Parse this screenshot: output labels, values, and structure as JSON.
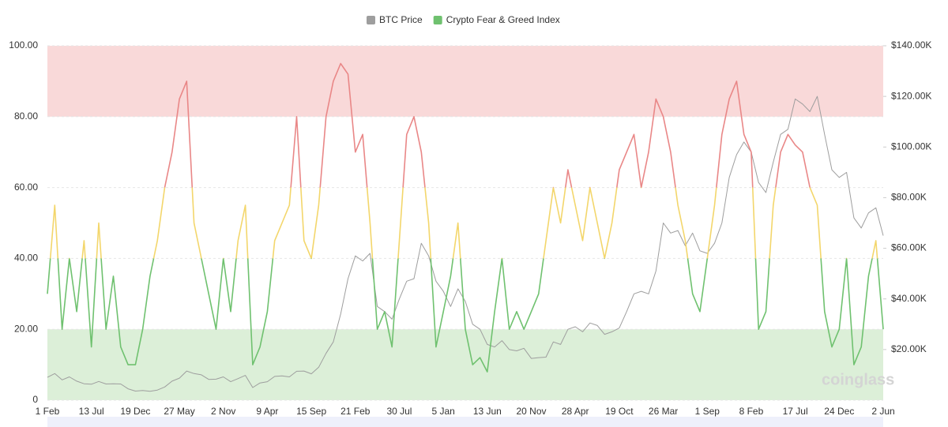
{
  "chart_data": {
    "type": "line",
    "watermark": "coinglass",
    "categories": [
      "1 Feb",
      null,
      null,
      null,
      null,
      null,
      "13 Jul",
      null,
      null,
      null,
      null,
      null,
      "19 Dec",
      null,
      null,
      null,
      null,
      null,
      "27 May",
      null,
      null,
      null,
      null,
      null,
      "2 Nov",
      null,
      null,
      null,
      null,
      null,
      "9 Apr",
      null,
      null,
      null,
      null,
      null,
      "15 Sep",
      null,
      null,
      null,
      null,
      null,
      "21 Feb",
      null,
      null,
      null,
      null,
      null,
      "30 Jul",
      null,
      null,
      null,
      null,
      null,
      "5 Jan",
      null,
      null,
      null,
      null,
      null,
      "13 Jun",
      null,
      null,
      null,
      null,
      null,
      "20 Nov",
      null,
      null,
      null,
      null,
      null,
      "28 Apr",
      null,
      null,
      null,
      null,
      null,
      "19 Oct",
      null,
      null,
      null,
      null,
      null,
      "26 Mar",
      null,
      null,
      null,
      null,
      null,
      "1 Sep",
      null,
      null,
      null,
      null,
      null,
      "8 Feb",
      null,
      null,
      null,
      null,
      null,
      "17 Jul",
      null,
      null,
      null,
      null,
      null,
      "24 Dec",
      null,
      null,
      null,
      null,
      null,
      "2 Jun"
    ],
    "series": [
      {
        "name": "BTC Price",
        "color": "#9e9e9e",
        "axis": "y2",
        "values": [
          9000,
          10500,
          8000,
          9200,
          7500,
          6500,
          6300,
          7400,
          6400,
          6500,
          6400,
          4500,
          3600,
          3800,
          3500,
          4000,
          5200,
          7500,
          8700,
          11500,
          10500,
          10000,
          8200,
          8300,
          9200,
          7300,
          8500,
          9800,
          5000,
          6800,
          7300,
          9400,
          9600,
          9200,
          11400,
          11500,
          10400,
          13000,
          18500,
          23000,
          34000,
          48000,
          57000,
          55000,
          58000,
          37000,
          35000,
          32000,
          40000,
          47000,
          48000,
          62000,
          57000,
          47000,
          43000,
          37000,
          44000,
          39000,
          30000,
          28000,
          22000,
          21000,
          23500,
          20000,
          19500,
          20500,
          16500,
          16800,
          17000,
          23000,
          22000,
          28000,
          29000,
          27000,
          30500,
          29500,
          26000,
          27000,
          28500,
          35000,
          42000,
          43000,
          42000,
          51000,
          70000,
          66000,
          67000,
          61000,
          66000,
          59000,
          58000,
          62000,
          70000,
          88000,
          97000,
          102000,
          98000,
          86000,
          82000,
          94000,
          105000,
          107000,
          119000,
          117000,
          114000,
          120000,
          105000,
          91000,
          88000,
          90000,
          72000,
          68000,
          74000,
          76000,
          65000
        ]
      },
      {
        "name": "Crypto Fear & Greed Index",
        "color": "#6fc16f",
        "values": [
          30,
          55,
          20,
          40,
          25,
          45,
          15,
          50,
          20,
          35,
          15,
          10,
          10,
          20,
          35,
          45,
          60,
          70,
          85,
          90,
          50,
          40,
          30,
          20,
          40,
          25,
          45,
          55,
          10,
          15,
          25,
          45,
          50,
          55,
          80,
          45,
          40,
          55,
          80,
          90,
          95,
          92,
          70,
          75,
          50,
          20,
          25,
          15,
          45,
          75,
          80,
          70,
          50,
          15,
          25,
          35,
          50,
          20,
          10,
          12,
          8,
          25,
          40,
          20,
          25,
          20,
          25,
          30,
          45,
          60,
          50,
          65,
          55,
          45,
          60,
          50,
          40,
          50,
          65,
          70,
          75,
          60,
          70,
          85,
          80,
          70,
          55,
          45,
          30,
          25,
          40,
          55,
          75,
          85,
          90,
          75,
          70,
          20,
          25,
          55,
          70,
          75,
          72,
          70,
          60,
          55,
          25,
          15,
          20,
          40,
          10,
          15,
          35,
          45,
          20
        ]
      }
    ],
    "zones": [
      {
        "below": 40,
        "color": "#6fc16f"
      },
      {
        "below": 60,
        "color": "#f3d66b"
      },
      {
        "below": 100,
        "color": "#e98787"
      }
    ],
    "bands": [
      {
        "from": 0,
        "to": 20,
        "color": "#dcefd8"
      },
      {
        "from": 80,
        "to": 100,
        "color": "#f9d9d9"
      }
    ],
    "ylim": [
      0,
      100
    ],
    "yticks": [
      0,
      {
        "value": 20,
        "label": "20.00"
      },
      {
        "value": 40,
        "label": "40.00"
      },
      {
        "value": 60,
        "label": "60.00"
      },
      {
        "value": 80,
        "label": "80.00"
      },
      {
        "value": 100,
        "label": "100.00"
      }
    ],
    "y2lim": [
      0,
      140000
    ],
    "y2ticks": [
      {
        "value": 20000,
        "label": "$20.00K"
      },
      {
        "value": 40000,
        "label": "$40.00K"
      },
      {
        "value": 60000,
        "label": "$60.00K"
      },
      {
        "value": 80000,
        "label": "$80.00K"
      },
      {
        "value": 100000,
        "label": "$100.00K"
      },
      {
        "value": 120000,
        "label": "$120.00K"
      },
      {
        "value": 140000,
        "label": "$140.00K"
      }
    ],
    "grid": true,
    "legend": "top"
  }
}
